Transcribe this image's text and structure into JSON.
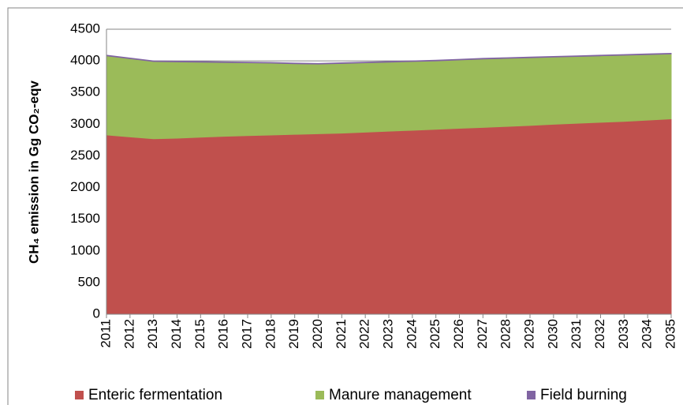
{
  "chart_data": {
    "type": "stacked_area",
    "y_label": "CH₄ emission in Gg CO₂-eqv",
    "categories": [
      "2011",
      "2012",
      "2013",
      "2014",
      "2015",
      "2016",
      "2017",
      "2018",
      "2019",
      "2020",
      "2021",
      "2022",
      "2023",
      "2024",
      "2025",
      "2026",
      "2027",
      "2028",
      "2029",
      "2030",
      "2031",
      "2032",
      "2033",
      "2034",
      "2035"
    ],
    "series": [
      {
        "name": "Enteric fermentation",
        "color": "#c0504d",
        "values": [
          2830,
          2800,
          2770,
          2780,
          2795,
          2810,
          2820,
          2830,
          2840,
          2850,
          2860,
          2875,
          2890,
          2905,
          2920,
          2935,
          2950,
          2965,
          2980,
          3000,
          3015,
          3030,
          3045,
          3065,
          3085
        ]
      },
      {
        "name": "Manure management",
        "color": "#9bbb59",
        "values": [
          1250,
          1235,
          1220,
          1205,
          1185,
          1165,
          1150,
          1135,
          1115,
          1100,
          1100,
          1095,
          1090,
          1085,
          1080,
          1080,
          1080,
          1075,
          1070,
          1060,
          1055,
          1050,
          1045,
          1035,
          1025
        ]
      },
      {
        "name": "Field burning",
        "color": "#8064a2",
        "values": [
          10,
          10,
          10,
          10,
          10,
          10,
          10,
          10,
          10,
          10,
          10,
          10,
          10,
          10,
          10,
          10,
          10,
          10,
          10,
          10,
          10,
          10,
          10,
          10,
          10
        ]
      }
    ],
    "ylim": [
      0,
      4500
    ],
    "yticks": [
      0,
      500,
      1000,
      1500,
      2000,
      2500,
      3000,
      3500,
      4000,
      4500
    ],
    "grid": true,
    "legend": "bottom"
  }
}
